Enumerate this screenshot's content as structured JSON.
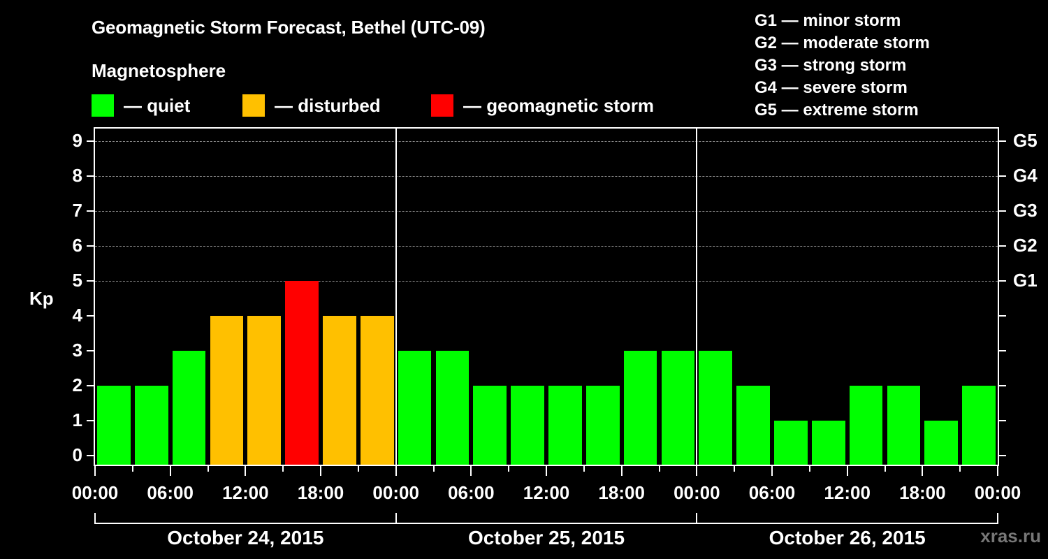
{
  "header": {
    "title": "Geomagnetic Storm Forecast, Bethel (UTC-09)",
    "subtitle": "Magnetosphere"
  },
  "legend": {
    "items": [
      {
        "label": "— quiet",
        "color": "#00ff00"
      },
      {
        "label": "— disturbed",
        "color": "#ffc000"
      },
      {
        "label": "— geomagnetic storm",
        "color": "#ff0000"
      }
    ]
  },
  "storm_scale": [
    "G1 — minor storm",
    "G2 — moderate storm",
    "G3 — strong storm",
    "G4 — severe storm",
    "G5 — extreme storm"
  ],
  "watermark": "xras.ru",
  "chart_data": {
    "type": "bar",
    "title": "Geomagnetic Storm Forecast, Bethel (UTC-09)",
    "xlabel": "",
    "ylabel": "Kp",
    "ylim": [
      0,
      9
    ],
    "y_ticks": [
      "0",
      "1",
      "2",
      "3",
      "4",
      "5",
      "6",
      "7",
      "8",
      "9"
    ],
    "right_axis_labels": {
      "5": "G1",
      "6": "G2",
      "7": "G3",
      "8": "G4",
      "9": "G5"
    },
    "grid": "dashed horizontal at Kp 5-9",
    "x_tick_labels": [
      "00:00",
      "06:00",
      "12:00",
      "18:00",
      "00:00",
      "06:00",
      "12:00",
      "18:00",
      "00:00",
      "06:00",
      "12:00",
      "18:00",
      "00:00"
    ],
    "days": [
      "October 24, 2015",
      "October 25, 2015",
      "October 26, 2015"
    ],
    "categories": [
      "Oct 24 00-03",
      "Oct 24 03-06",
      "Oct 24 06-09",
      "Oct 24 09-12",
      "Oct 24 12-15",
      "Oct 24 15-18",
      "Oct 24 18-21",
      "Oct 24 21-24",
      "Oct 25 00-03",
      "Oct 25 03-06",
      "Oct 25 06-09",
      "Oct 25 09-12",
      "Oct 25 12-15",
      "Oct 25 15-18",
      "Oct 25 18-21",
      "Oct 25 21-24",
      "Oct 26 00-03",
      "Oct 26 03-06",
      "Oct 26 06-09",
      "Oct 26 09-12",
      "Oct 26 12-15",
      "Oct 26 15-18",
      "Oct 26 18-21",
      "Oct 26 21-24"
    ],
    "values": [
      2,
      2,
      3,
      4,
      4,
      5,
      4,
      4,
      3,
      3,
      2,
      2,
      2,
      2,
      3,
      3,
      3,
      2,
      1,
      1,
      2,
      2,
      1,
      2
    ],
    "status": [
      "quiet",
      "quiet",
      "quiet",
      "disturbed",
      "disturbed",
      "storm",
      "disturbed",
      "disturbed",
      "quiet",
      "quiet",
      "quiet",
      "quiet",
      "quiet",
      "quiet",
      "quiet",
      "quiet",
      "quiet",
      "quiet",
      "quiet",
      "quiet",
      "quiet",
      "quiet",
      "quiet",
      "quiet"
    ],
    "colors": {
      "quiet": "#00ff00",
      "disturbed": "#ffc000",
      "storm": "#ff0000"
    }
  }
}
